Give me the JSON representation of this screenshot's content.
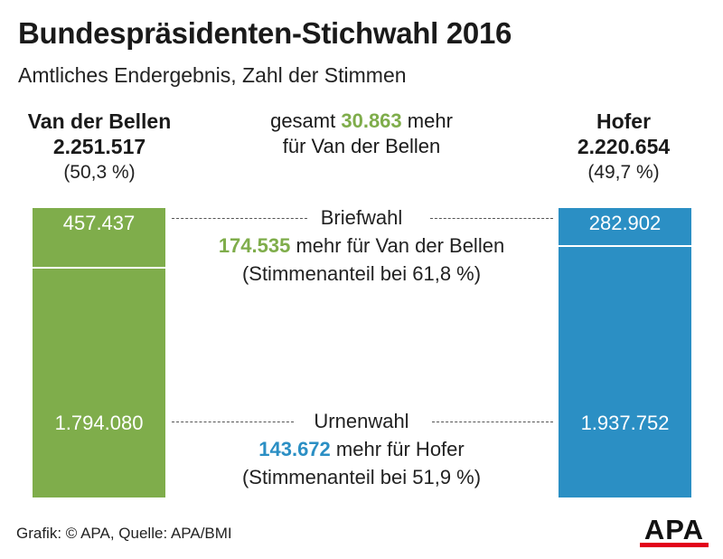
{
  "title": "Bundespräsidenten-Stichwahl 2016",
  "subtitle": "Amtliches Endergebnis, Zahl der Stimmen",
  "colors": {
    "van_der_bellen": "#7fad4b",
    "hofer": "#2b8fc4",
    "apa_red": "#e2001a"
  },
  "candidates": {
    "left": {
      "name": "Van der Bellen",
      "votes": "2.251.517",
      "percent": "(50,3 %)"
    },
    "right": {
      "name": "Hofer",
      "votes": "2.220.654",
      "percent": "(49,7 %)"
    }
  },
  "total": {
    "prefix": "gesamt",
    "amount": "30.863",
    "suffix": "mehr",
    "line2": "für Van der Bellen"
  },
  "briefwahl": {
    "heading": "Briefwahl",
    "amount": "174.535",
    "text": "mehr für Van der Bellen",
    "share": "(Stimmenanteil bei 61,8 %)"
  },
  "urnenwahl": {
    "heading": "Urnenwahl",
    "amount": "143.672",
    "text": "mehr für Hofer",
    "share": "(Stimmenanteil bei 51,9 %)"
  },
  "chart_data": {
    "type": "bar",
    "title": "Bundespräsidenten-Stichwahl 2016",
    "subtitle": "Amtliches Endergebnis, Zahl der Stimmen",
    "categories": [
      "Van der Bellen",
      "Hofer"
    ],
    "series": [
      {
        "name": "Briefwahl",
        "values": [
          457437,
          282902
        ],
        "labels": [
          "457.437",
          "282.902"
        ]
      },
      {
        "name": "Urnenwahl",
        "values": [
          1794080,
          1937752
        ],
        "labels": [
          "1.794.080",
          "1.937.752"
        ]
      }
    ],
    "totals": [
      2251517,
      2220654
    ],
    "stacked": true
  },
  "source": "Grafik: © APA, Quelle: APA/BMI",
  "logo": "APA"
}
